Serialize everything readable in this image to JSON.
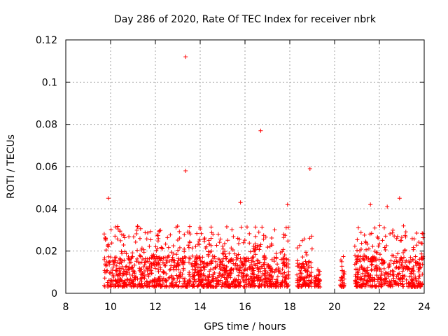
{
  "chart_data": {
    "type": "scatter",
    "title": "Day 286 of 2020, Rate Of TEC Index for receiver nbrk",
    "xlabel": "GPS time / hours",
    "ylabel": "ROTI / TECUs",
    "xlim": [
      8,
      24
    ],
    "ylim": [
      0,
      0.12
    ],
    "xticks": [
      "8",
      "10",
      "12",
      "14",
      "16",
      "18",
      "20",
      "22",
      "24"
    ],
    "yticks": [
      "0",
      "0.02",
      "0.04",
      "0.06",
      "0.08",
      "0.1",
      "0.12"
    ],
    "grid": true,
    "marker": "+",
    "color": "#ff0000",
    "outliers": [
      {
        "x": 13.35,
        "y": 0.112
      },
      {
        "x": 16.7,
        "y": 0.077
      },
      {
        "x": 13.35,
        "y": 0.058
      },
      {
        "x": 18.9,
        "y": 0.059
      },
      {
        "x": 9.9,
        "y": 0.045
      },
      {
        "x": 22.9,
        "y": 0.045
      },
      {
        "x": 15.8,
        "y": 0.043
      },
      {
        "x": 17.9,
        "y": 0.042
      },
      {
        "x": 21.6,
        "y": 0.042
      },
      {
        "x": 22.35,
        "y": 0.041
      }
    ],
    "coverage_segments": [
      {
        "start": 9.7,
        "end": 17.95,
        "typical_max": 0.032
      },
      {
        "start": 18.3,
        "end": 19.0,
        "typical_max": 0.028
      },
      {
        "start": 19.1,
        "end": 19.35,
        "typical_max": 0.012
      },
      {
        "start": 20.25,
        "end": 20.45,
        "typical_max": 0.018
      },
      {
        "start": 20.9,
        "end": 23.95,
        "typical_max": 0.032
      }
    ],
    "typical_min": 0.003
  }
}
